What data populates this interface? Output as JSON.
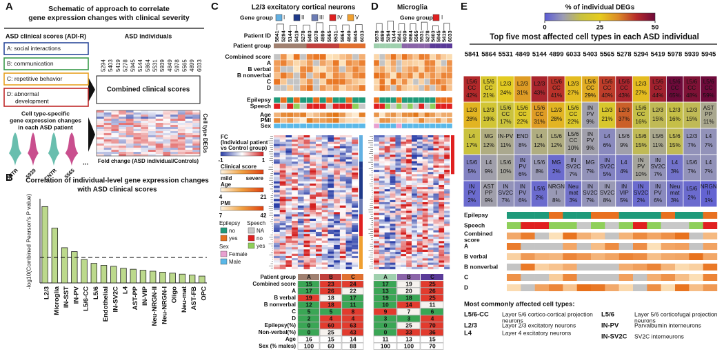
{
  "panel_a": {
    "letter": "A",
    "title_lines": [
      "Schematic of approach to correlate",
      "gene expression changes with clinical severity"
    ],
    "left_header": "ASD clinical scores (ADI-R)",
    "right_header": "ASD individuals",
    "scores": [
      {
        "label": "A: social interactions",
        "color": "#2c4a9a"
      },
      {
        "label": "B: communication",
        "color": "#3a9a4a"
      },
      {
        "label": "C: repetitive behavior",
        "color": "#e8a020"
      },
      {
        "label": "D: abnormal",
        "color": "#c02828"
      }
    ],
    "score_d_line2": "development",
    "individuals": [
      "5294",
      "5403",
      "5419",
      "5278",
      "5945",
      "5144",
      "5864",
      "5531",
      "5939",
      "4849",
      "5978",
      "5565",
      "4899",
      "6033"
    ],
    "combined_label": "Combined clinical scores",
    "deg_lines": [
      "Cell type-specific",
      "gene expression changes",
      "in each ASD patient"
    ],
    "deg_axis": "Cell type DEGs",
    "fc_axis": "Fold change (ASD individual/Controls)",
    "violin_labels": [
      "CNTR",
      "5939",
      "CNTR",
      "5565"
    ],
    "ellipsis": "...",
    "violin_colors": [
      "#4fb3a0",
      "#c0307a"
    ]
  },
  "panel_b": {
    "letter": "B",
    "title_lines": [
      "Correlation of individual-level gene expression changes",
      "with ASD clinical scores"
    ],
    "chart_data": {
      "type": "bar",
      "y_label": "-log10(Combined Pearson's P value)",
      "categories": [
        "L2/3",
        "Microglia",
        "IN-SST",
        "IN-PV",
        "L5/6-CC",
        "L5/6",
        "Endothelial",
        "IN-SV2C",
        "L4",
        "AST-PP",
        "IN-VIP",
        "Neu-NRGN-II",
        "Neu-NRGN-I",
        "Oligo",
        "Neu-mat",
        "AST-FB",
        "OPC"
      ],
      "values": [
        3.9,
        2.8,
        1.8,
        1.6,
        1.2,
        1.0,
        0.9,
        0.85,
        0.75,
        0.7,
        0.65,
        0.6,
        0.55,
        0.5,
        0.45,
        0.4,
        0.35
      ],
      "label_colors": [
        "#2e9a3a",
        "#2e9a3a",
        "#2e9a3a",
        "#2e9a3a",
        "#2e9a3a",
        "#111",
        "#111",
        "#111",
        "#111",
        "#111",
        "#111",
        "#111",
        "#111",
        "#111",
        "#111",
        "#111",
        "#111"
      ],
      "color": "#bcd98c",
      "ylim": [
        0,
        4.3
      ],
      "threshold": 1.3
    }
  },
  "panel_c": {
    "letter": "C",
    "title": "L2/3 excitatory cortical neurons",
    "gene_group_label": "Gene group",
    "gene_groups": [
      {
        "name": "I",
        "color": "#62b0e2"
      },
      {
        "name": "II",
        "color": "#1f3a8a"
      },
      {
        "name": "III",
        "color": "#6c7cb4"
      },
      {
        "name": "IV",
        "color": "#e02020"
      },
      {
        "name": "V",
        "color": "#f0a030"
      }
    ],
    "row_labels": [
      "Patient ID",
      "Patient group",
      "Combined score",
      "A",
      "B verbal",
      "B nonverbal",
      "C",
      "D",
      "Epilepsy",
      "Speech",
      "Age",
      "PMI",
      "Sex"
    ],
    "patient_ids": [
      "5841",
      "5294",
      "5144",
      "5419",
      "5278",
      "5403",
      "5978",
      "4899",
      "5565",
      "5531",
      "5864",
      "4849",
      "5945",
      "6033"
    ],
    "legend": {
      "fc_title": [
        "FC",
        "(Individual patient",
        "vs Control group)"
      ],
      "fc_ticks": [
        -1,
        1
      ],
      "clinical_title": "Clinical score",
      "clinical_ends": [
        "mild",
        "severe"
      ],
      "age_title": "Age",
      "age_ticks": [
        4,
        21
      ],
      "pmi_title": "PMI",
      "pmi_ticks": [
        7,
        42
      ],
      "epilepsy_title": "Epilepsy",
      "epilepsy_items": [
        "no",
        "yes"
      ],
      "epilepsy_colors": [
        "#1f9a7a",
        "#e87020"
      ],
      "speech_title": "Speech",
      "speech_items": [
        "NA",
        "no",
        "yes"
      ],
      "speech_colors": [
        "#c8c8c8",
        "#e02020",
        "#8fcf5a"
      ],
      "sex_title": "Sex",
      "sex_items": [
        "Female",
        "Male"
      ],
      "sex_colors": [
        "#e8a0d0",
        "#5ab8e8"
      ]
    },
    "table": {
      "header": "Patient group",
      "groups": [
        {
          "name": "A",
          "color": "#a08070"
        },
        {
          "name": "B",
          "color": "#c0403c"
        },
        {
          "name": "C",
          "color": "#e07030"
        }
      ],
      "rows": [
        {
          "label": "Combined score",
          "values": [
            15,
            23,
            24
          ],
          "colored": true
        },
        {
          "label": "A",
          "values": [
            17,
            26,
            22
          ],
          "colored": true
        },
        {
          "label": "B verbal",
          "values": [
            19,
            18,
            17
          ],
          "colored": true
        },
        {
          "label": "B nonverbal",
          "values": [
            12,
            18,
            11
          ],
          "colored": true
        },
        {
          "label": "C",
          "values": [
            5,
            5,
            8
          ],
          "colored": true
        },
        {
          "label": "D",
          "values": [
            2,
            4,
            4
          ],
          "colored": true
        },
        {
          "label": "Epilepsy(%)",
          "values": [
            0,
            60,
            63
          ],
          "colored": true
        },
        {
          "label": "Non-verbal(%)",
          "values": [
            0,
            25,
            43
          ],
          "colored": true
        },
        {
          "label": "Age",
          "values": [
            16,
            15,
            14
          ],
          "colored": false
        },
        {
          "label": "Sex (% males)",
          "values": [
            100,
            60,
            88
          ],
          "colored": false
        }
      ]
    }
  },
  "panel_d": {
    "letter": "D",
    "title": "Microglia",
    "gene_group_label": "Gene group",
    "gene_groups": [
      {
        "name": "I",
        "color": "#e02020"
      }
    ],
    "patient_ids": [
      "5978",
      "4899",
      "5294",
      "5144",
      "5841",
      "5939",
      "5864",
      "5565",
      "5531",
      "5278",
      "5403",
      "5945",
      "5419",
      "6033"
    ],
    "table": {
      "groups": [
        {
          "name": "A",
          "color": "#9fd0ae"
        },
        {
          "name": "B",
          "color": "#8a64a8"
        },
        {
          "name": "C",
          "color": "#5a3a98"
        }
      ],
      "rows": [
        {
          "values": [
            17,
            19,
            25
          ],
          "colored": true
        },
        {
          "values": [
            13,
            20,
            26
          ],
          "colored": true
        },
        {
          "values": [
            19,
            18,
            25
          ],
          "colored": true
        },
        {
          "values": [
            10,
            14,
            11
          ],
          "colored": true
        },
        {
          "values": [
            9,
            7,
            6
          ],
          "colored": true
        },
        {
          "values": [
            3,
            3,
            4
          ],
          "colored": true
        },
        {
          "values": [
            0,
            25,
            70
          ],
          "colored": true
        },
        {
          "values": [
            0,
            33,
            36
          ],
          "colored": true
        },
        {
          "values": [
            11,
            13,
            15
          ],
          "colored": false
        },
        {
          "values": [
            100,
            100,
            70
          ],
          "colored": false
        }
      ]
    }
  },
  "panel_e": {
    "letter": "E",
    "colorbar_title": "% of individual DEGs",
    "clim": [
      0,
      50
    ],
    "cticks": [
      0,
      25,
      50
    ],
    "colormap": [
      "#5b5bd6",
      "#9c9cb4",
      "#c9c23e",
      "#e6cc1e",
      "#dc8a28",
      "#b62a2a",
      "#6e0a3a"
    ],
    "title": "Top five most affected cell types in each ASD individual",
    "individuals": [
      "5841",
      "5864",
      "5531",
      "4849",
      "5144",
      "4899",
      "6033",
      "5403",
      "5565",
      "5278",
      "5294",
      "5419",
      "5978",
      "5939",
      "5945"
    ],
    "rows": [
      {
        "types": [
          [
            "L5/6",
            "CC"
          ],
          [
            "L5/6",
            "CC"
          ],
          [
            "L2/3"
          ],
          [
            "L2/3"
          ],
          [
            "L2/3"
          ],
          [
            "L5/6",
            "CC"
          ],
          [
            "L2/3"
          ],
          [
            "L5/6",
            "CC"
          ],
          [
            "L5/6",
            "CC"
          ],
          [
            "L5/6",
            "CC"
          ],
          [
            "L2/3"
          ],
          [
            "L5/6",
            "CC"
          ],
          [
            "L5/6",
            "CC"
          ],
          [
            "L5/6",
            "CC"
          ],
          [
            "L5/6",
            "CC"
          ]
        ],
        "values": [
          42,
          21,
          24,
          31,
          43,
          41,
          27,
          29,
          40,
          43,
          27,
          44,
          65,
          48,
          59
        ],
        "value_labels": [
          "42%",
          "21%",
          "24%",
          "31%",
          "43%",
          "41%",
          "27%",
          "29%",
          "40%",
          "43%",
          "27%",
          "44%",
          "65%",
          "48%",
          "59%"
        ]
      },
      {
        "types": [
          [
            "L2/3"
          ],
          [
            "L2/3"
          ],
          [
            "L5/6",
            "CC"
          ],
          [
            "L5/6",
            "CC"
          ],
          [
            "L5/6",
            "CC"
          ],
          [
            "L2/3"
          ],
          [
            "L5/6",
            "CC"
          ],
          [
            "IN",
            "PV"
          ],
          [
            "L2/3"
          ],
          [
            "L2/3"
          ],
          [
            "L5/6",
            "CC"
          ],
          [
            "L2/3"
          ],
          [
            "L2/3"
          ],
          [
            "L2/3"
          ],
          [
            "AST",
            "PP"
          ]
        ],
        "values": [
          28,
          19,
          17,
          22,
          31,
          28,
          22,
          9,
          21,
          37,
          16,
          15,
          16,
          15,
          11
        ],
        "value_labels": [
          "28%",
          "19%",
          "17%",
          "22%",
          "31%",
          "28%",
          "22%",
          "9%",
          "21%",
          "37%",
          "16%",
          "15%",
          "16%",
          "15%",
          "11%"
        ]
      },
      {
        "types": [
          [
            "L4"
          ],
          [
            "MG"
          ],
          [
            "IN-PV"
          ],
          [
            "END"
          ],
          [
            "L4"
          ],
          [
            "L5/6"
          ],
          [
            "L5/6",
            "CC"
          ],
          [
            "IN",
            "PV"
          ],
          [
            "L4"
          ],
          [
            "L5/6"
          ],
          [
            "L5/6"
          ],
          [
            "L5/6"
          ],
          [
            "L5/6"
          ],
          [
            "L2/3"
          ],
          [
            "L4"
          ]
        ],
        "values": [
          17,
          12,
          11,
          8,
          12,
          12,
          10,
          9,
          6,
          9,
          15,
          11,
          15,
          7,
          7
        ],
        "value_labels": [
          "17%",
          "12%",
          "11%",
          "8%",
          "12%",
          "12%",
          "10%",
          "9%",
          "6%",
          "9%",
          "15%",
          "11%",
          "15%",
          "7%",
          "7%"
        ]
      },
      {
        "types": [
          [
            "L5/6"
          ],
          [
            "L4"
          ],
          [
            "L5/6"
          ],
          [
            "IN",
            "PV"
          ],
          [
            "L5/6"
          ],
          [
            "MG"
          ],
          [
            "IN",
            "SV2C"
          ],
          [
            "MG"
          ],
          [
            "IN",
            "SV2C"
          ],
          [
            "L4"
          ],
          [
            "IN",
            "PV"
          ],
          [
            "IN",
            "SV2C"
          ],
          [
            "L4"
          ],
          [
            "L5/6"
          ],
          [
            "L4"
          ]
        ],
        "values": [
          5,
          9,
          10,
          6,
          8,
          2,
          7,
          7,
          5,
          4,
          10,
          7,
          3,
          7,
          7
        ],
        "value_labels": [
          "5%",
          "9%",
          "10%",
          "6%",
          "8%",
          "2%",
          "7%",
          "7%",
          "5%",
          "4%",
          "10%",
          "7%",
          "3%",
          "7%",
          "7%"
        ]
      },
      {
        "types": [
          [
            "IN",
            "PV"
          ],
          [
            "AST",
            "PP"
          ],
          [
            "IN",
            "SV2C"
          ],
          [
            "IN",
            "PV"
          ],
          [
            "L5/6"
          ],
          [
            "NRGN",
            "I"
          ],
          [
            "Neu",
            "mat"
          ],
          [
            "IN",
            "SV2C"
          ],
          [
            "IN",
            "SV2C"
          ],
          [
            "IN",
            "VIP"
          ],
          [
            "IN",
            "SV2C"
          ],
          [
            "IN",
            "PV"
          ],
          [
            "Neu",
            "mat"
          ],
          [
            "L5/6"
          ],
          [
            "NRGN",
            "II"
          ]
        ],
        "values": [
          2,
          9,
          7,
          6,
          2,
          8,
          3,
          7,
          8,
          5,
          2,
          6,
          3,
          2,
          1
        ],
        "value_labels": [
          "2%",
          "9%",
          "7%",
          "6%",
          "2%",
          "8%",
          "3%",
          "7%",
          "8%",
          "5%",
          "2%",
          "6%",
          "3%",
          "2%",
          "1%"
        ]
      }
    ],
    "strip_labels": [
      "Epilepsy",
      "Speech",
      [
        "Combined",
        "score"
      ],
      "A",
      "B verbal",
      "B nonverbal",
      "C",
      "D"
    ],
    "legend_title": "Most commonly affected cell types:",
    "legend": [
      {
        "term": "L5/6-CC",
        "desc": [
          "Layer 5/6 cortico-cortical projection",
          "neurons"
        ]
      },
      {
        "term": "L2/3",
        "desc": [
          "Layer 2/3 excitatory neurons"
        ]
      },
      {
        "term": "L4",
        "desc": [
          "Layer 4 excitatory neurons"
        ]
      },
      {
        "term": "L5/6",
        "desc": [
          "Layer 5/6 corticofugal projection",
          "neurons"
        ]
      },
      {
        "term": "IN-PV",
        "desc": [
          "Parvalbumin interneurons"
        ]
      },
      {
        "term": "IN-SV2C",
        "desc": [
          "SV2C interneurons"
        ]
      }
    ]
  }
}
